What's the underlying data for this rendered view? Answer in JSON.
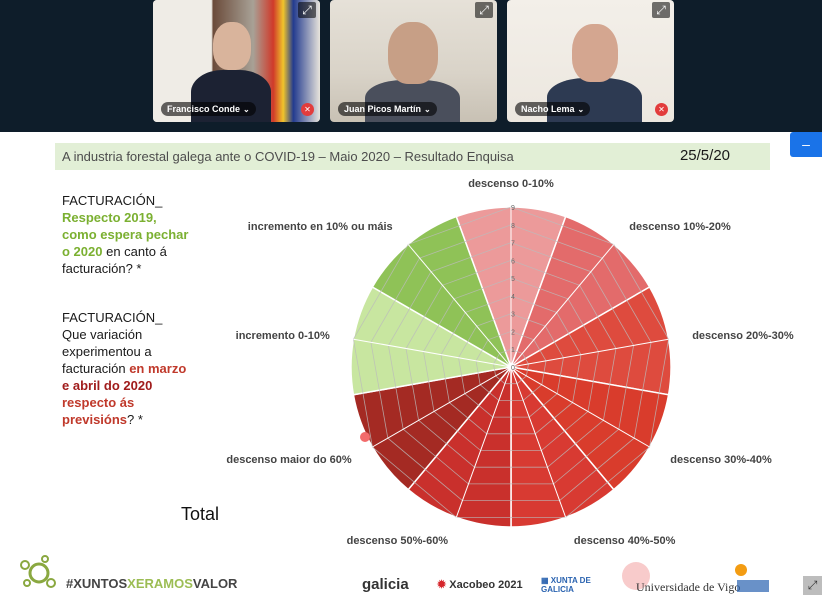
{
  "participants": [
    {
      "name": "Francisco Conde",
      "muted": true
    },
    {
      "name": "Juan Picos Martín",
      "muted": false
    },
    {
      "name": "Nacho Lema",
      "muted": true
    }
  ],
  "icons": {
    "expand": "expand-icon",
    "muted": "mic-off-icon",
    "chevron": "chevron-down-icon"
  },
  "side_button_label": "–",
  "slide": {
    "title": "A industria forestal galega ante o COVID-19 – Maio 2020 – Resultado Enquisa",
    "date": "25/5/20",
    "q1": {
      "l1": "FACTURACIÓN_",
      "l2": "Respecto 2019,",
      "l3": "como espera pechar",
      "l4a": "o 2020",
      "l4b": " en canto á",
      "l5": "facturación? *"
    },
    "q2": {
      "l1": "FACTURACIÓN_",
      "l2": "Que variación",
      "l3": "experimentou a",
      "l4a": "facturación ",
      "l4b": "en marzo",
      "l5": "e abril do 2020",
      "l6": "respecto ás",
      "l7a": "previsións",
      "l7b": "? *"
    },
    "total_label": "Total"
  },
  "chart_data": {
    "type": "radar",
    "categories": [
      "descenso 0-10%",
      "descenso 10%-20%",
      "descenso 20%-30%",
      "descenso 30%-40%",
      "descenso 40%-50%",
      "descenso 50%-60%",
      "descenso maior do 60%",
      "incremento 0-10%",
      "incremento en 10% ou máis"
    ],
    "values": [
      9,
      9,
      9,
      9,
      9,
      9,
      9,
      9,
      9
    ],
    "rlim": [
      0,
      9
    ],
    "rticks": [
      "0",
      "1",
      "2",
      "3",
      "4",
      "5",
      "6",
      "7",
      "8",
      "9"
    ],
    "colors": [
      "#ec9a9a",
      "#e36b6b",
      "#de4b3e",
      "#d93c2c",
      "#d83a32",
      "#c9302c",
      "#a42a23",
      "#c8e6a0",
      "#8fc257"
    ],
    "grid": true
  },
  "footer": {
    "hashtag_a": "#XUNTOS",
    "hashtag_b": "XERAMOS",
    "hashtag_c": "VALOR",
    "logos": [
      "galicia",
      "Xacobeo 2021",
      "XUNTA DE GALICIA",
      "Universidade de Vigo"
    ]
  }
}
